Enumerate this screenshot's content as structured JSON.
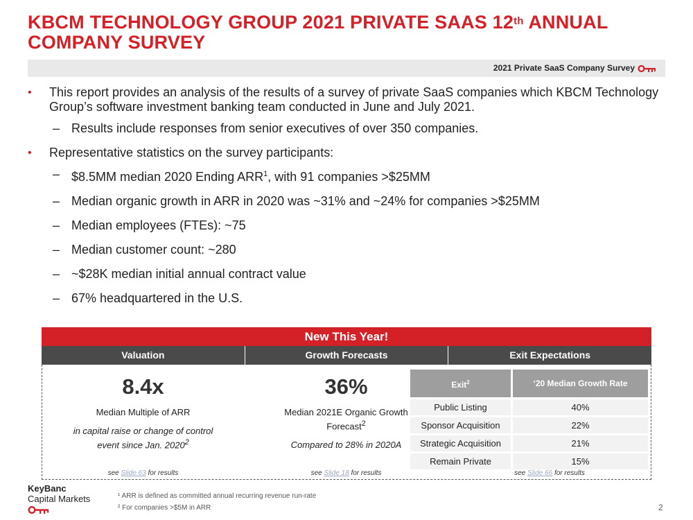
{
  "title": {
    "line1_pre": "KBCM TECHNOLOGY GROUP 2021 PRIVATE SAAS 12",
    "line1_sup": "th",
    "line1_post": " ANNUAL",
    "line2": "COMPANY SURVEY"
  },
  "survey_bar": {
    "label": "2021 Private SaaS Company Survey",
    "icon": "key-icon"
  },
  "bullets": {
    "intro": "This report provides an analysis of the results of a survey of private SaaS companies which KBCM Technology Group’s software investment banking team conducted in June and July 2021.",
    "intro_sub": "Results include responses from senior executives of over 350 companies.",
    "stats_header": "Representative statistics on the survey participants:",
    "arr_pre": "$8.5MM median 2020 Ending ARR",
    "arr_sup": "1",
    "arr_post": ", with 91 companies >$25MM",
    "stats": [
      "Median organic growth in ARR in 2020 was ~31% and ~24% for companies >$25MM",
      "Median employees (FTEs): ~75",
      "Median customer count: ~280",
      "~$28K median initial annual contract value",
      "67% headquartered in the U.S."
    ]
  },
  "panel": {
    "banner": "New This Year!",
    "headers": [
      "Valuation",
      "Growth Forecasts",
      "Exit Expectations"
    ],
    "valuation": {
      "value": "8.4x",
      "label": "Median Multiple of ARR",
      "note": "in capital raise or change of control event since Jan. 2020",
      "note_sup": "2",
      "see_pre": "see ",
      "see_link": "Slide 63",
      "see_post": " for results"
    },
    "growth": {
      "value": "36%",
      "label": "Median 2021E Organic Growth Forecast",
      "label_sup": "2",
      "note": "Compared to 28% in 2020A",
      "see_pre": "see ",
      "see_link": "Slide 18",
      "see_post": " for results"
    },
    "exit": {
      "col1": "Exit",
      "col1_sup": "2",
      "col2": "‘20 Median Growth Rate",
      "rows": [
        {
          "exit": "Public Listing",
          "rate": "40%"
        },
        {
          "exit": "Sponsor Acquisition",
          "rate": "22%"
        },
        {
          "exit": "Strategic Acquisition",
          "rate": "21%"
        },
        {
          "exit": "Remain Private",
          "rate": "15%"
        }
      ],
      "see_pre": "see ",
      "see_link": "Slide 66",
      "see_post": " for results"
    }
  },
  "footer": {
    "logo_line1": "KeyBanc",
    "logo_line2": "Capital Markets",
    "note1": "¹ ARR is defined as committed annual recurring revenue run-rate",
    "note2": "² For companies >$5M in ARR",
    "page": "2"
  },
  "colors": {
    "brand_red": "#d42027",
    "header_gray": "#4a4a4a"
  }
}
